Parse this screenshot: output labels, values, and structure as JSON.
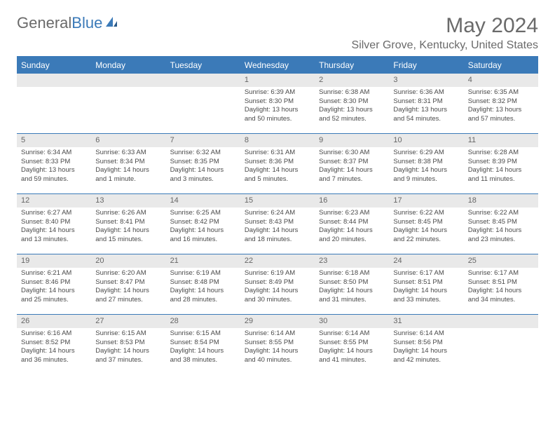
{
  "logo": {
    "text1": "General",
    "text2": "Blue"
  },
  "title": "May 2024",
  "location": "Silver Grove, Kentucky, United States",
  "colors": {
    "accent": "#3b7ab8",
    "header_text": "#6a6a6a",
    "day_bg": "#e9e9e9",
    "body_text": "#4a4a4a"
  },
  "weekdays": [
    "Sunday",
    "Monday",
    "Tuesday",
    "Wednesday",
    "Thursday",
    "Friday",
    "Saturday"
  ],
  "weeks": [
    [
      null,
      null,
      null,
      {
        "n": "1",
        "sr": "Sunrise: 6:39 AM",
        "ss": "Sunset: 8:30 PM",
        "dl": "Daylight: 13 hours and 50 minutes."
      },
      {
        "n": "2",
        "sr": "Sunrise: 6:38 AM",
        "ss": "Sunset: 8:30 PM",
        "dl": "Daylight: 13 hours and 52 minutes."
      },
      {
        "n": "3",
        "sr": "Sunrise: 6:36 AM",
        "ss": "Sunset: 8:31 PM",
        "dl": "Daylight: 13 hours and 54 minutes."
      },
      {
        "n": "4",
        "sr": "Sunrise: 6:35 AM",
        "ss": "Sunset: 8:32 PM",
        "dl": "Daylight: 13 hours and 57 minutes."
      }
    ],
    [
      {
        "n": "5",
        "sr": "Sunrise: 6:34 AM",
        "ss": "Sunset: 8:33 PM",
        "dl": "Daylight: 13 hours and 59 minutes."
      },
      {
        "n": "6",
        "sr": "Sunrise: 6:33 AM",
        "ss": "Sunset: 8:34 PM",
        "dl": "Daylight: 14 hours and 1 minute."
      },
      {
        "n": "7",
        "sr": "Sunrise: 6:32 AM",
        "ss": "Sunset: 8:35 PM",
        "dl": "Daylight: 14 hours and 3 minutes."
      },
      {
        "n": "8",
        "sr": "Sunrise: 6:31 AM",
        "ss": "Sunset: 8:36 PM",
        "dl": "Daylight: 14 hours and 5 minutes."
      },
      {
        "n": "9",
        "sr": "Sunrise: 6:30 AM",
        "ss": "Sunset: 8:37 PM",
        "dl": "Daylight: 14 hours and 7 minutes."
      },
      {
        "n": "10",
        "sr": "Sunrise: 6:29 AM",
        "ss": "Sunset: 8:38 PM",
        "dl": "Daylight: 14 hours and 9 minutes."
      },
      {
        "n": "11",
        "sr": "Sunrise: 6:28 AM",
        "ss": "Sunset: 8:39 PM",
        "dl": "Daylight: 14 hours and 11 minutes."
      }
    ],
    [
      {
        "n": "12",
        "sr": "Sunrise: 6:27 AM",
        "ss": "Sunset: 8:40 PM",
        "dl": "Daylight: 14 hours and 13 minutes."
      },
      {
        "n": "13",
        "sr": "Sunrise: 6:26 AM",
        "ss": "Sunset: 8:41 PM",
        "dl": "Daylight: 14 hours and 15 minutes."
      },
      {
        "n": "14",
        "sr": "Sunrise: 6:25 AM",
        "ss": "Sunset: 8:42 PM",
        "dl": "Daylight: 14 hours and 16 minutes."
      },
      {
        "n": "15",
        "sr": "Sunrise: 6:24 AM",
        "ss": "Sunset: 8:43 PM",
        "dl": "Daylight: 14 hours and 18 minutes."
      },
      {
        "n": "16",
        "sr": "Sunrise: 6:23 AM",
        "ss": "Sunset: 8:44 PM",
        "dl": "Daylight: 14 hours and 20 minutes."
      },
      {
        "n": "17",
        "sr": "Sunrise: 6:22 AM",
        "ss": "Sunset: 8:45 PM",
        "dl": "Daylight: 14 hours and 22 minutes."
      },
      {
        "n": "18",
        "sr": "Sunrise: 6:22 AM",
        "ss": "Sunset: 8:45 PM",
        "dl": "Daylight: 14 hours and 23 minutes."
      }
    ],
    [
      {
        "n": "19",
        "sr": "Sunrise: 6:21 AM",
        "ss": "Sunset: 8:46 PM",
        "dl": "Daylight: 14 hours and 25 minutes."
      },
      {
        "n": "20",
        "sr": "Sunrise: 6:20 AM",
        "ss": "Sunset: 8:47 PM",
        "dl": "Daylight: 14 hours and 27 minutes."
      },
      {
        "n": "21",
        "sr": "Sunrise: 6:19 AM",
        "ss": "Sunset: 8:48 PM",
        "dl": "Daylight: 14 hours and 28 minutes."
      },
      {
        "n": "22",
        "sr": "Sunrise: 6:19 AM",
        "ss": "Sunset: 8:49 PM",
        "dl": "Daylight: 14 hours and 30 minutes."
      },
      {
        "n": "23",
        "sr": "Sunrise: 6:18 AM",
        "ss": "Sunset: 8:50 PM",
        "dl": "Daylight: 14 hours and 31 minutes."
      },
      {
        "n": "24",
        "sr": "Sunrise: 6:17 AM",
        "ss": "Sunset: 8:51 PM",
        "dl": "Daylight: 14 hours and 33 minutes."
      },
      {
        "n": "25",
        "sr": "Sunrise: 6:17 AM",
        "ss": "Sunset: 8:51 PM",
        "dl": "Daylight: 14 hours and 34 minutes."
      }
    ],
    [
      {
        "n": "26",
        "sr": "Sunrise: 6:16 AM",
        "ss": "Sunset: 8:52 PM",
        "dl": "Daylight: 14 hours and 36 minutes."
      },
      {
        "n": "27",
        "sr": "Sunrise: 6:15 AM",
        "ss": "Sunset: 8:53 PM",
        "dl": "Daylight: 14 hours and 37 minutes."
      },
      {
        "n": "28",
        "sr": "Sunrise: 6:15 AM",
        "ss": "Sunset: 8:54 PM",
        "dl": "Daylight: 14 hours and 38 minutes."
      },
      {
        "n": "29",
        "sr": "Sunrise: 6:14 AM",
        "ss": "Sunset: 8:55 PM",
        "dl": "Daylight: 14 hours and 40 minutes."
      },
      {
        "n": "30",
        "sr": "Sunrise: 6:14 AM",
        "ss": "Sunset: 8:55 PM",
        "dl": "Daylight: 14 hours and 41 minutes."
      },
      {
        "n": "31",
        "sr": "Sunrise: 6:14 AM",
        "ss": "Sunset: 8:56 PM",
        "dl": "Daylight: 14 hours and 42 minutes."
      },
      null
    ]
  ]
}
